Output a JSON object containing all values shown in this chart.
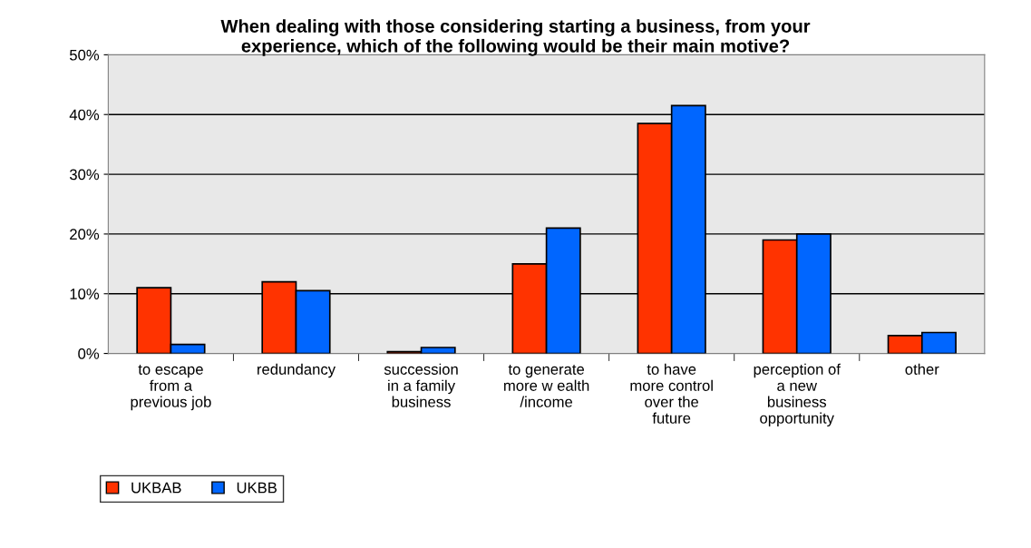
{
  "chart_data": {
    "type": "bar",
    "title": "When dealing with those considering starting a business, from your\nexperience, which of the following would be their main motive?",
    "categories": [
      "to escape\nfrom a\nprevious job",
      "redundancy",
      "succession\nin a family\nbusiness",
      "to generate\nmore w ealth\n/income",
      "to have\nmore control\nover the\nfuture",
      "perception of\na new\nbusiness\nopportunity",
      "other"
    ],
    "series": [
      {
        "name": "UKBAB",
        "color": "#ff3300",
        "values": [
          11,
          12,
          0.3,
          15,
          38.5,
          19,
          3
        ]
      },
      {
        "name": "UKBB",
        "color": "#0066ff",
        "values": [
          1.5,
          10.5,
          1,
          21,
          41.5,
          20,
          3.5
        ]
      }
    ],
    "ylim": [
      0,
      50
    ],
    "yticks": [
      {
        "value": 0,
        "label": "0%"
      },
      {
        "value": 10,
        "label": "10%"
      },
      {
        "value": 20,
        "label": "20%"
      },
      {
        "value": 30,
        "label": "30%"
      },
      {
        "value": 40,
        "label": "40%"
      },
      {
        "value": 50,
        "label": "50%"
      }
    ],
    "grid": "y",
    "legend": "bottom left"
  }
}
